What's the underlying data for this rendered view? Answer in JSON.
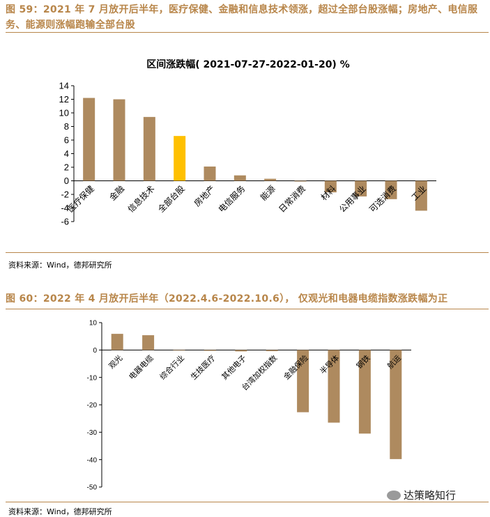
{
  "figure1": {
    "caption": "图 59：2021 年 7 月放开后半年，医疗保健、金融和信息技术领涨，超过全部台股涨幅；房地产、电信服务、能源则涨幅跑输全部台股",
    "source": "资料来源：Wind，德邦研究所"
  },
  "figure2": {
    "caption": "图 60：2022 年 4 月放开后半年（2022.4.6-2022.10.6）， 仅观光和电器电缆指数涨跌幅为正",
    "source": "资料来源：Wind，德邦研究所"
  },
  "watermark": "达策略知行",
  "colors": {
    "bar": "#ae8a5f",
    "highlight": "#ffc000",
    "caption": "#b8864a"
  },
  "chart_data": [
    {
      "type": "bar",
      "title": "区间涨跌幅( 2021-07-27-2022-01-20) %",
      "categories": [
        "医疗保健",
        "金融",
        "信息技术",
        "全部台股",
        "房地产",
        "电信服务",
        "能源",
        "日常消费",
        "材料",
        "公用事业",
        "可选消费",
        "工业"
      ],
      "values": [
        12.2,
        12.0,
        9.4,
        6.6,
        2.1,
        0.8,
        0.3,
        -0.1,
        -1.7,
        -2.3,
        -2.7,
        -4.4
      ],
      "highlight": "全部台股",
      "ylim": [
        -6,
        14
      ],
      "yticks": [
        14,
        12,
        10,
        8,
        6,
        4,
        2,
        0,
        -2,
        -4,
        -6
      ]
    },
    {
      "type": "bar",
      "categories": [
        "观光",
        "电器电缆",
        "综合行业",
        "生技医疗",
        "其他电子",
        "台湾加权指数",
        "金融保险",
        "半导体",
        "钢铁",
        "航运"
      ],
      "values": [
        5.9,
        5.4,
        0.0,
        -0.3,
        -0.5,
        -0.4,
        -22.7,
        -26.5,
        -30.5,
        -39.8
      ],
      "ylim": [
        -50,
        10
      ],
      "yticks": [
        10,
        0,
        -10,
        -20,
        -30,
        -40,
        -50
      ]
    }
  ]
}
